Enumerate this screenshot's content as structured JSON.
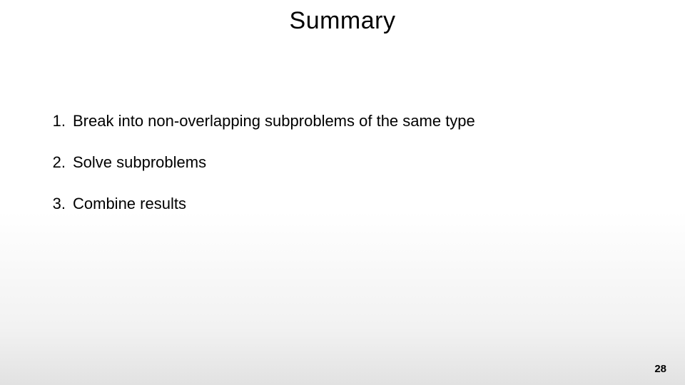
{
  "slide": {
    "title": "Summary",
    "title_fontsize": 34,
    "title_fontweight": 300,
    "title_color": "#000000",
    "background_gradient": {
      "start": "#ffffff",
      "mid": "#f2f2f2",
      "end": "#e2e2e2"
    },
    "items": [
      {
        "number": "1.",
        "text": "Break into non-overlapping subproblems of the same type"
      },
      {
        "number": "2.",
        "text": "Solve subproblems"
      },
      {
        "number": "3.",
        "text": "Combine results"
      }
    ],
    "item_fontsize": 22,
    "item_color": "#000000",
    "page_number": "28",
    "page_number_fontsize": 15,
    "page_number_color": "#000000"
  }
}
